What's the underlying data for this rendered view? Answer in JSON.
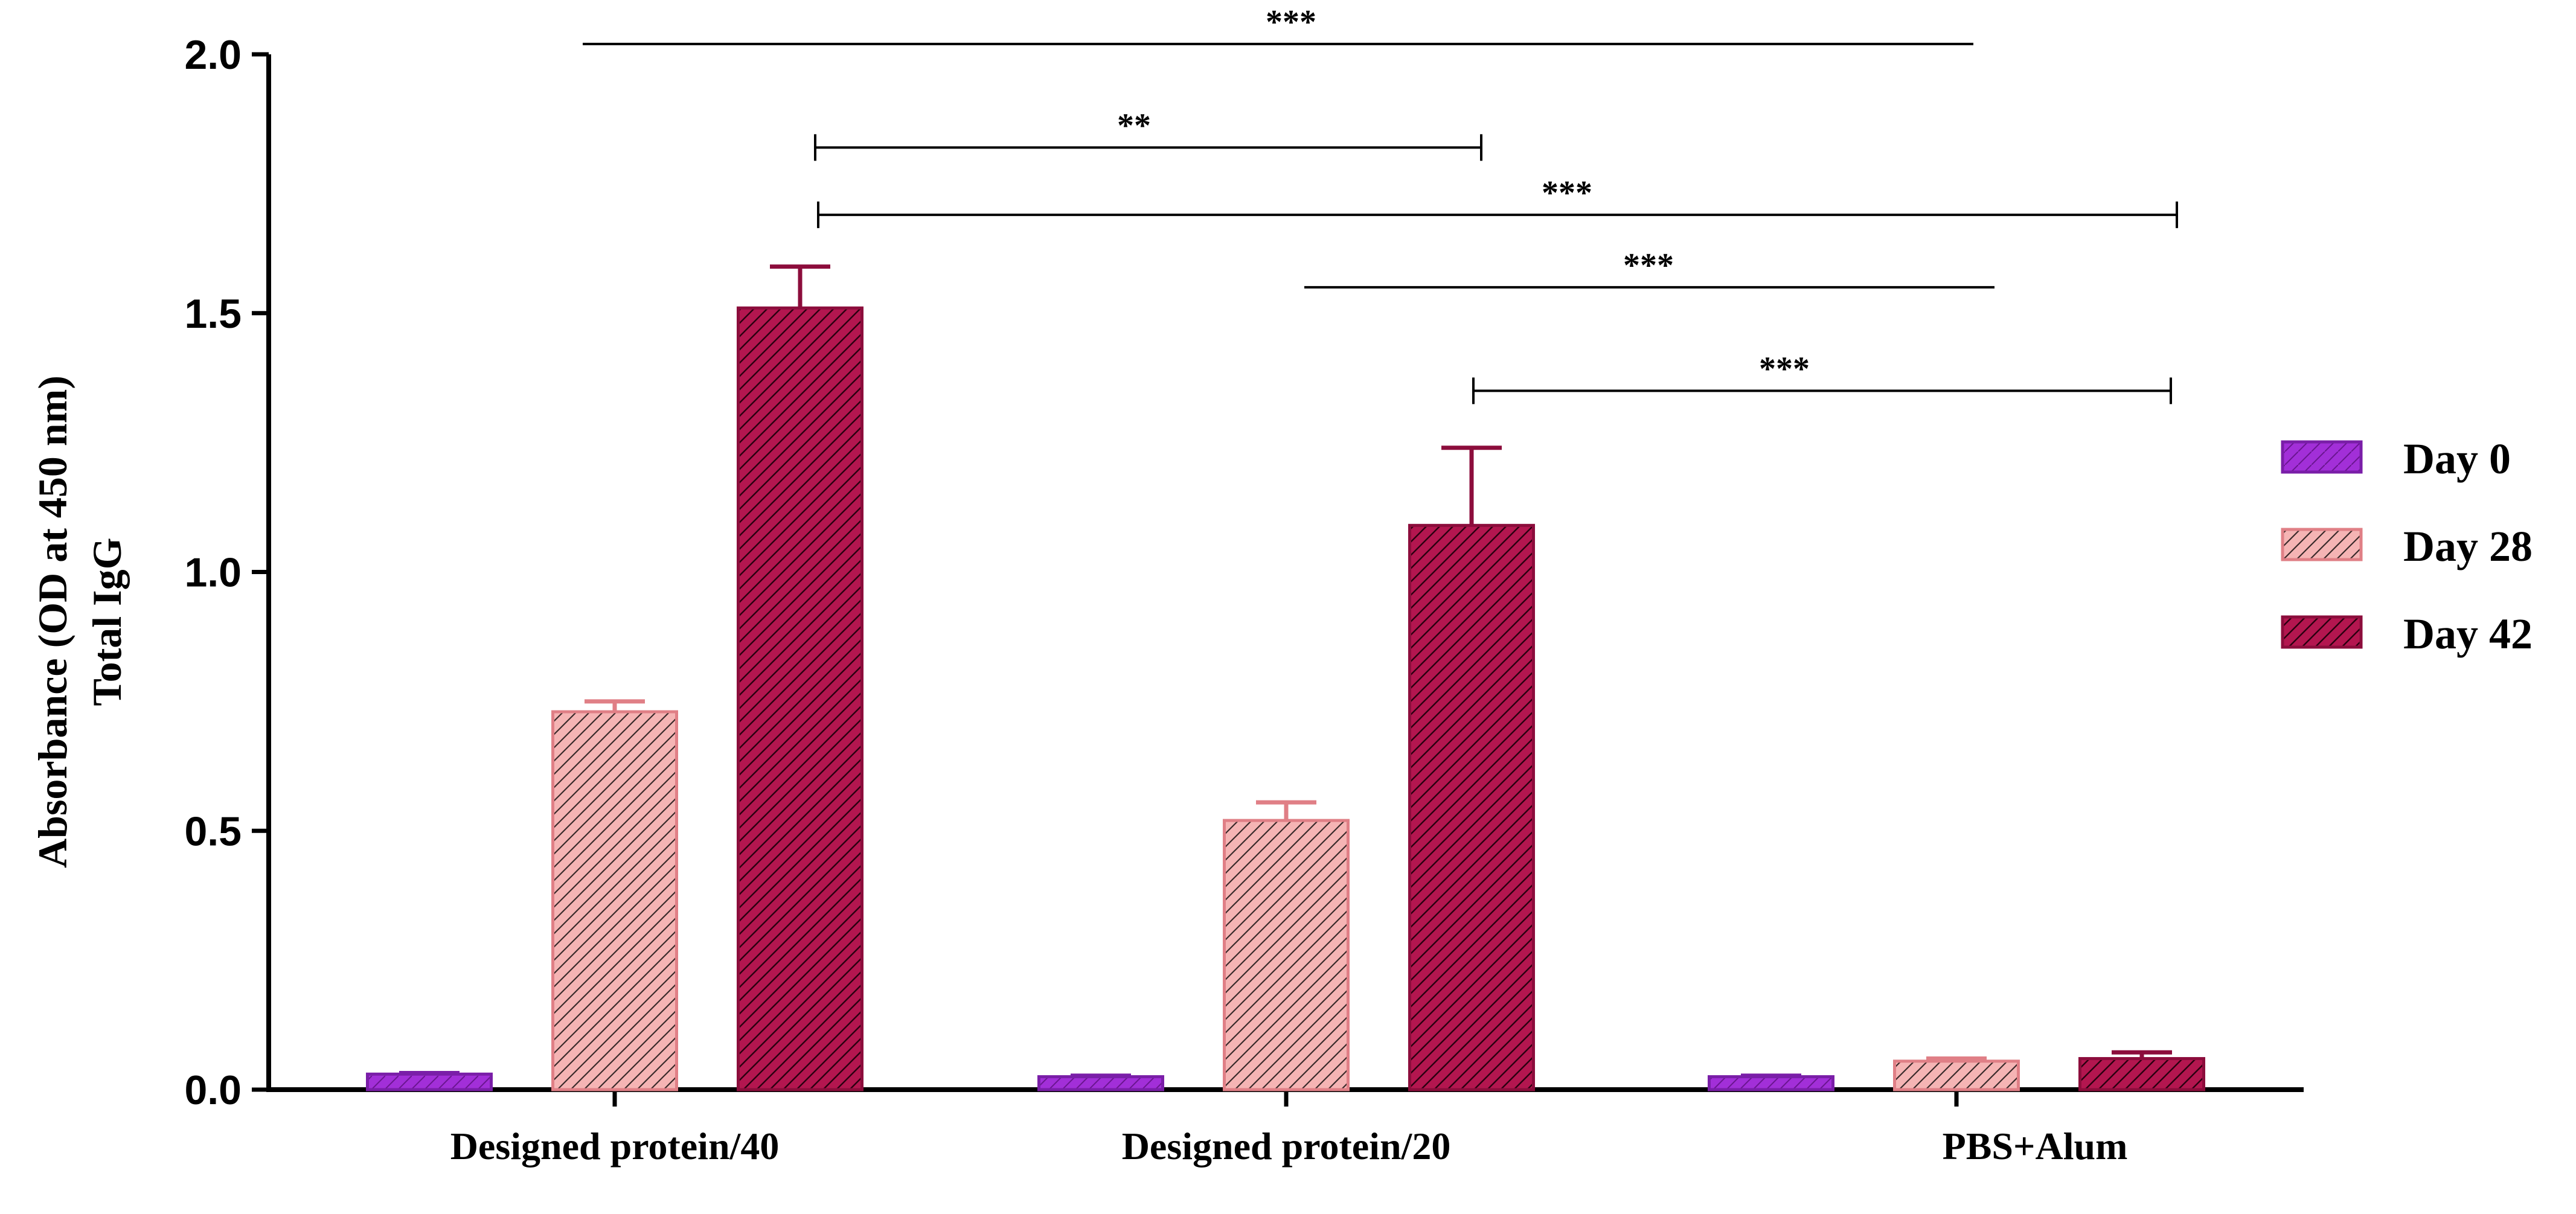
{
  "chart_data": {
    "type": "bar",
    "ylabel_lines": [
      "Absorbance (OD at 450 nm)",
      "Total IgG"
    ],
    "categories": [
      "Designed protein/40",
      "Designed protein/20",
      "PBS+Alum"
    ],
    "ylim": [
      0,
      2.0
    ],
    "yticks": [
      0.0,
      0.5,
      1.0,
      1.5,
      2.0
    ],
    "ytick_labels": [
      "0.0",
      "0.5",
      "1.0",
      "1.5",
      "2.0"
    ],
    "grid": false,
    "legend_position": "right",
    "series": [
      {
        "name": "Day 0",
        "values": [
          0.03,
          0.025,
          0.025
        ],
        "errors": [
          0.002,
          0.002,
          0.002
        ],
        "color": "#a22fd8",
        "edge": "#7a1ea8"
      },
      {
        "name": "Day 28",
        "values": [
          0.73,
          0.52,
          0.055
        ],
        "errors": [
          0.02,
          0.035,
          0.005
        ],
        "color": "#f2a6a6",
        "edge": "#e07f86"
      },
      {
        "name": "Day 42",
        "values": [
          1.51,
          1.09,
          0.06
        ],
        "errors": [
          0.08,
          0.15,
          0.012
        ],
        "color": "#b3164f",
        "edge": "#8c0d3c"
      }
    ],
    "significance": [
      {
        "label": "***",
        "from": [
          0,
          0
        ],
        "to": [
          2,
          0
        ],
        "y": 2.02,
        "caps": false
      },
      {
        "label": "**",
        "from": [
          0,
          1
        ],
        "to": [
          1,
          1
        ],
        "y": 1.82,
        "caps": true
      },
      {
        "label": "***",
        "from": [
          0,
          1
        ],
        "to": [
          2,
          2
        ],
        "y": 1.69,
        "caps": true
      },
      {
        "label": "***",
        "from": [
          1,
          0
        ],
        "to": [
          2,
          0
        ],
        "y": 1.55,
        "caps": false
      },
      {
        "label": "***",
        "from": [
          1,
          2
        ],
        "to": [
          2,
          2
        ],
        "y": 1.35,
        "caps": true
      }
    ]
  }
}
